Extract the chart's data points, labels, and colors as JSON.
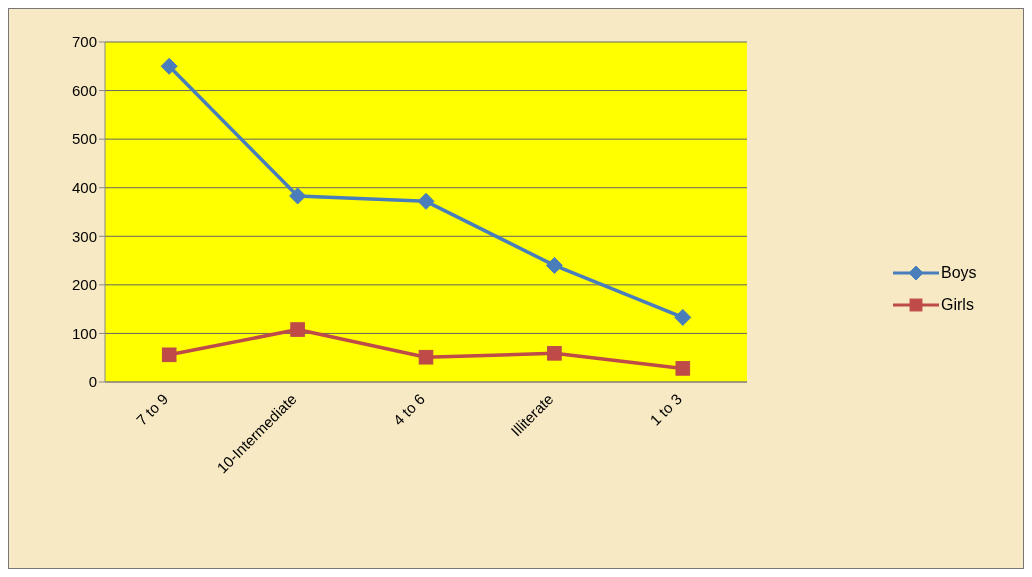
{
  "chart_data": {
    "type": "line",
    "categories": [
      "7 to 9",
      "10-Intermediate",
      "4 to 6",
      "Illiterate",
      "1 to 3"
    ],
    "series": [
      {
        "name": "Boys",
        "color": "#4a7ebb",
        "marker": "diamond",
        "values": [
          650,
          383,
          372,
          240,
          133
        ]
      },
      {
        "name": "Girls",
        "color": "#be4b48",
        "marker": "square",
        "values": [
          56,
          108,
          51,
          59,
          28
        ]
      }
    ],
    "ylim": [
      0,
      700
    ],
    "yticks": [
      0,
      100,
      200,
      300,
      400,
      500,
      600,
      700
    ],
    "grid": "y",
    "legend": "right"
  }
}
